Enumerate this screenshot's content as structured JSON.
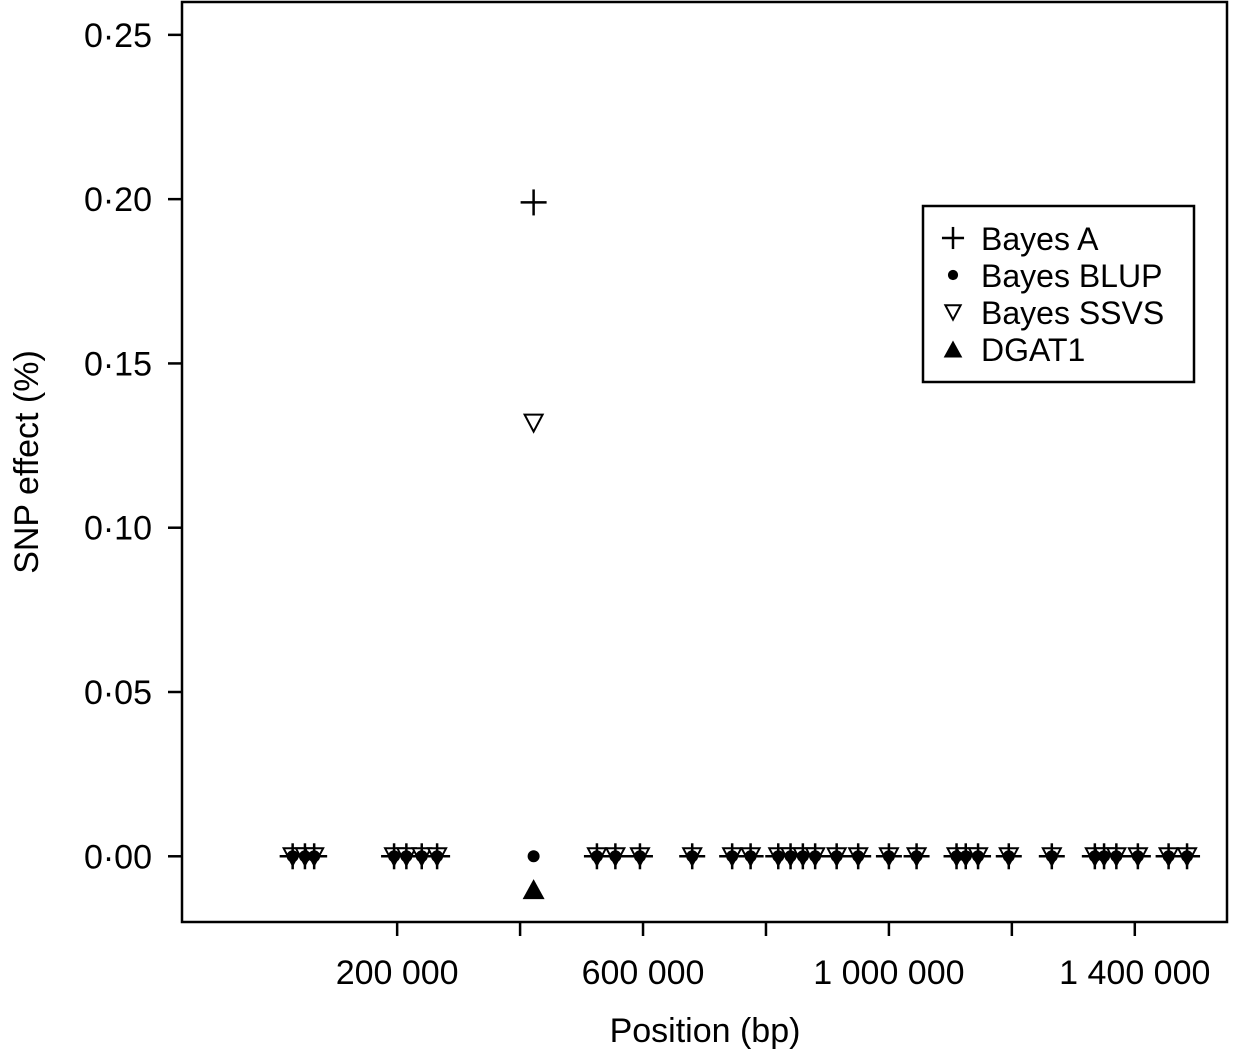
{
  "chart_data": {
    "type": "scatter",
    "xlabel": "Position (bp)",
    "ylabel": "SNP effect (%)",
    "xlim": [
      -150000,
      1550000
    ],
    "ylim": [
      -0.02,
      0.26
    ],
    "x_ticks": [
      200000,
      400000,
      600000,
      800000,
      1000000,
      1200000,
      1400000
    ],
    "x_tick_labels": [
      "200 000",
      "",
      "600 000",
      "",
      "1 000 000",
      "",
      "1 400 000"
    ],
    "y_ticks": [
      0,
      0.05,
      0.1,
      0.15,
      0.2,
      0.25
    ],
    "y_tick_labels": [
      "0·00",
      "0·05",
      "0·10",
      "0·15",
      "0·20",
      "0·25"
    ],
    "legend_position": "top-right",
    "grid": false,
    "snp_positions": [
      30000,
      50000,
      65000,
      195000,
      215000,
      240000,
      265000,
      525000,
      555000,
      595000,
      680000,
      745000,
      775000,
      820000,
      840000,
      860000,
      880000,
      915000,
      950000,
      1000000,
      1045000,
      1110000,
      1125000,
      1145000,
      1195000,
      1265000,
      1335000,
      1350000,
      1370000,
      1405000,
      1455000,
      1485000
    ],
    "series": [
      {
        "name": "Bayes A",
        "marker": "plus",
        "color": "#000000",
        "points": [
          [
            422000,
            0.199
          ],
          [
            30000,
            0
          ],
          [
            50000,
            0
          ],
          [
            65000,
            0
          ],
          [
            195000,
            0
          ],
          [
            215000,
            0
          ],
          [
            240000,
            0
          ],
          [
            265000,
            0
          ],
          [
            525000,
            0
          ],
          [
            555000,
            0
          ],
          [
            595000,
            0
          ],
          [
            680000,
            0
          ],
          [
            745000,
            0
          ],
          [
            775000,
            0
          ],
          [
            820000,
            0
          ],
          [
            840000,
            0
          ],
          [
            860000,
            0
          ],
          [
            880000,
            0
          ],
          [
            915000,
            0
          ],
          [
            950000,
            0
          ],
          [
            1000000,
            0
          ],
          [
            1045000,
            0
          ],
          [
            1110000,
            0
          ],
          [
            1125000,
            0
          ],
          [
            1145000,
            0
          ],
          [
            1195000,
            0
          ],
          [
            1265000,
            0
          ],
          [
            1335000,
            0
          ],
          [
            1350000,
            0
          ],
          [
            1370000,
            0
          ],
          [
            1405000,
            0
          ],
          [
            1455000,
            0
          ],
          [
            1485000,
            0
          ]
        ]
      },
      {
        "name": "Bayes BLUP",
        "marker": "dot",
        "color": "#000000",
        "points": [
          [
            422000,
            0.0
          ],
          [
            30000,
            0
          ],
          [
            50000,
            0
          ],
          [
            65000,
            0
          ],
          [
            195000,
            0
          ],
          [
            215000,
            0
          ],
          [
            240000,
            0
          ],
          [
            265000,
            0
          ],
          [
            525000,
            0
          ],
          [
            555000,
            0
          ],
          [
            595000,
            0
          ],
          [
            680000,
            0
          ],
          [
            745000,
            0
          ],
          [
            775000,
            0
          ],
          [
            820000,
            0
          ],
          [
            840000,
            0
          ],
          [
            860000,
            0
          ],
          [
            880000,
            0
          ],
          [
            915000,
            0
          ],
          [
            950000,
            0
          ],
          [
            1000000,
            0
          ],
          [
            1045000,
            0
          ],
          [
            1110000,
            0
          ],
          [
            1125000,
            0
          ],
          [
            1145000,
            0
          ],
          [
            1195000,
            0
          ],
          [
            1265000,
            0
          ],
          [
            1335000,
            0
          ],
          [
            1350000,
            0
          ],
          [
            1370000,
            0
          ],
          [
            1405000,
            0
          ],
          [
            1455000,
            0
          ],
          [
            1485000,
            0
          ]
        ]
      },
      {
        "name": "Bayes SSVS",
        "marker": "triangle-down-open",
        "color": "#000000",
        "points": [
          [
            422000,
            0.132
          ],
          [
            30000,
            0
          ],
          [
            50000,
            0
          ],
          [
            65000,
            0
          ],
          [
            195000,
            0
          ],
          [
            215000,
            0
          ],
          [
            240000,
            0
          ],
          [
            265000,
            0
          ],
          [
            525000,
            0
          ],
          [
            555000,
            0
          ],
          [
            595000,
            0
          ],
          [
            680000,
            0
          ],
          [
            745000,
            0
          ],
          [
            775000,
            0
          ],
          [
            820000,
            0
          ],
          [
            840000,
            0
          ],
          [
            860000,
            0
          ],
          [
            880000,
            0
          ],
          [
            915000,
            0
          ],
          [
            950000,
            0
          ],
          [
            1000000,
            0
          ],
          [
            1045000,
            0
          ],
          [
            1110000,
            0
          ],
          [
            1125000,
            0
          ],
          [
            1145000,
            0
          ],
          [
            1195000,
            0
          ],
          [
            1265000,
            0
          ],
          [
            1335000,
            0
          ],
          [
            1350000,
            0
          ],
          [
            1370000,
            0
          ],
          [
            1405000,
            0
          ],
          [
            1455000,
            0
          ],
          [
            1485000,
            0
          ]
        ]
      },
      {
        "name": "DGAT1",
        "marker": "triangle-up-filled",
        "color": "#000000",
        "points": [
          [
            422000,
            -0.01
          ]
        ]
      }
    ]
  }
}
